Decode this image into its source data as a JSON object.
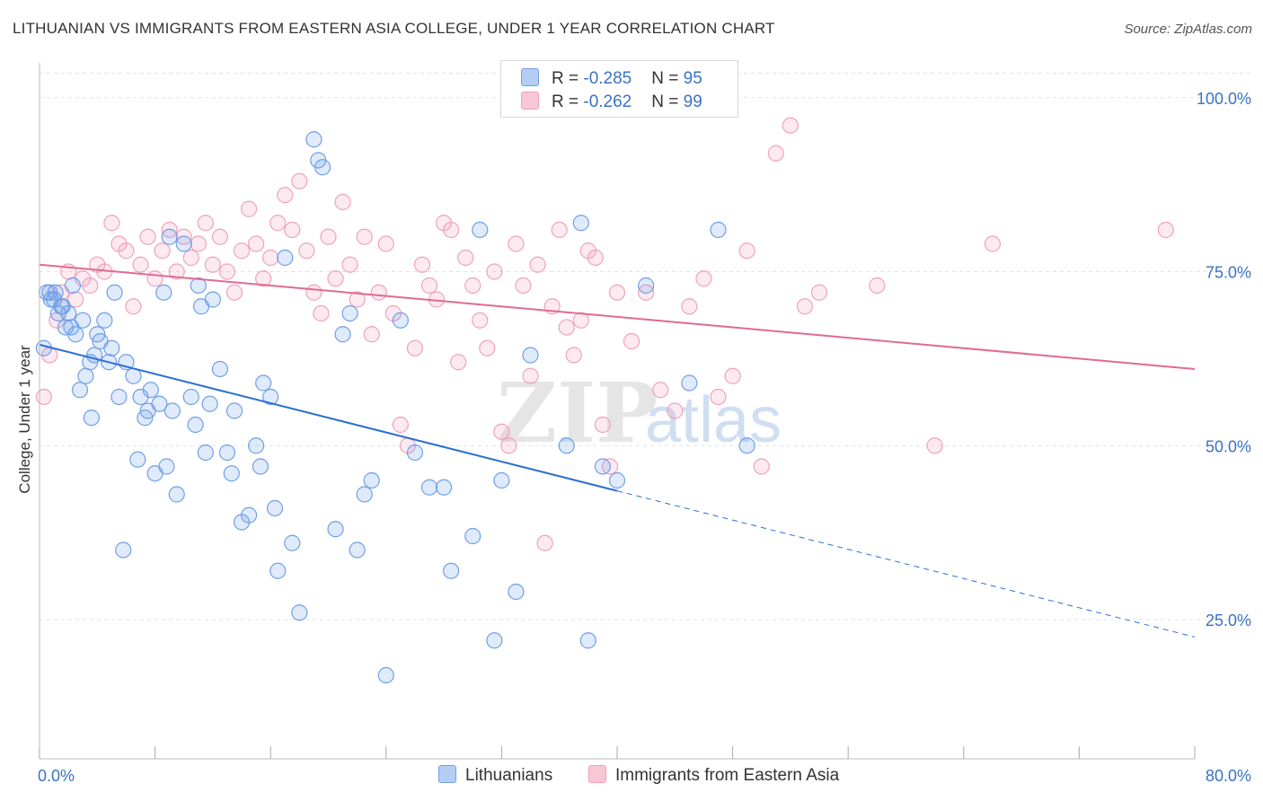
{
  "title": "LITHUANIAN VS IMMIGRANTS FROM EASTERN ASIA COLLEGE, UNDER 1 YEAR CORRELATION CHART",
  "source": "Source: ZipAtlas.com",
  "watermark": {
    "zip": "ZIP",
    "atlas": "atlas"
  },
  "legend": {
    "rows": [
      {
        "r_label": "R = ",
        "r_value": "-0.285",
        "n_label": "N = ",
        "n_value": "95"
      },
      {
        "r_label": "R = ",
        "r_value": "-0.262",
        "n_label": "N = ",
        "n_value": "99"
      }
    ]
  },
  "bottom_legend": {
    "a": "Lithuanians",
    "b": "Immigrants from Eastern Asia"
  },
  "chart_data": {
    "type": "scatter",
    "title": "LITHUANIAN VS IMMIGRANTS FROM EASTERN ASIA COLLEGE, UNDER 1 YEAR CORRELATION CHART",
    "xlabel": "",
    "ylabel": "College, Under 1 year",
    "xlim": [
      0,
      80
    ],
    "ylim": [
      5,
      105
    ],
    "x_tick_labels": [
      "0.0%",
      "80.0%"
    ],
    "y_ticks": [
      25,
      50,
      75,
      100
    ],
    "y_tick_labels": [
      "25.0%",
      "50.0%",
      "75.0%",
      "100.0%"
    ],
    "grid": true,
    "colors": {
      "blue": "#6f9ee8",
      "blue_line": "#2b6fd1",
      "pink": "#f0a0bc",
      "pink_line": "#e06a93",
      "tick_text": "#3a72c4"
    },
    "series": [
      {
        "name": "Lithuanians",
        "color": "#6f9ee8",
        "trend": {
          "x0": 0,
          "y0": 64.5,
          "x1": 40,
          "y1": 43.5,
          "dash_to_x": 80,
          "dash_to_y": 22.5
        },
        "points": [
          [
            0.3,
            64
          ],
          [
            0.5,
            72
          ],
          [
            0.7,
            72
          ],
          [
            0.8,
            71
          ],
          [
            1.0,
            71
          ],
          [
            1.1,
            72
          ],
          [
            1.3,
            69
          ],
          [
            1.5,
            70
          ],
          [
            1.6,
            70
          ],
          [
            2.0,
            69
          ],
          [
            2.2,
            67
          ],
          [
            2.5,
            66
          ],
          [
            2.8,
            58
          ],
          [
            3.0,
            68
          ],
          [
            3.2,
            60
          ],
          [
            3.5,
            62
          ],
          [
            3.8,
            63
          ],
          [
            4.0,
            66
          ],
          [
            4.2,
            65
          ],
          [
            4.5,
            68
          ],
          [
            5.0,
            64
          ],
          [
            5.2,
            72
          ],
          [
            5.5,
            57
          ],
          [
            6.0,
            62
          ],
          [
            6.5,
            60
          ],
          [
            7.0,
            57
          ],
          [
            7.3,
            54
          ],
          [
            7.5,
            55
          ],
          [
            8.0,
            46
          ],
          [
            8.3,
            56
          ],
          [
            8.6,
            72
          ],
          [
            9.0,
            80
          ],
          [
            9.2,
            55
          ],
          [
            9.5,
            43
          ],
          [
            10.0,
            79
          ],
          [
            10.5,
            57
          ],
          [
            11.0,
            73
          ],
          [
            11.2,
            70
          ],
          [
            11.5,
            49
          ],
          [
            12.0,
            71
          ],
          [
            12.5,
            61
          ],
          [
            13.0,
            49
          ],
          [
            13.5,
            55
          ],
          [
            14.0,
            39
          ],
          [
            14.5,
            40
          ],
          [
            15.0,
            50
          ],
          [
            15.5,
            59
          ],
          [
            16.0,
            57
          ],
          [
            16.5,
            32
          ],
          [
            17.0,
            77
          ],
          [
            18.0,
            26
          ],
          [
            19.0,
            94
          ],
          [
            19.3,
            91
          ],
          [
            19.6,
            90
          ],
          [
            20.5,
            38
          ],
          [
            21.0,
            66
          ],
          [
            21.5,
            69
          ],
          [
            22.0,
            35
          ],
          [
            22.5,
            43
          ],
          [
            23.0,
            45
          ],
          [
            24.0,
            17
          ],
          [
            25.0,
            68
          ],
          [
            26.0,
            49
          ],
          [
            27.0,
            44
          ],
          [
            28.0,
            44
          ],
          [
            28.5,
            32
          ],
          [
            30.0,
            37
          ],
          [
            30.5,
            81
          ],
          [
            31.5,
            22
          ],
          [
            32.0,
            45
          ],
          [
            33.0,
            29
          ],
          [
            34.0,
            63
          ],
          [
            36.5,
            50
          ],
          [
            37.5,
            82
          ],
          [
            38.0,
            22
          ],
          [
            39.0,
            47
          ],
          [
            40.0,
            45
          ],
          [
            42.0,
            73
          ],
          [
            45.0,
            59
          ],
          [
            47.0,
            81
          ],
          [
            49.0,
            50
          ],
          [
            2.3,
            73
          ],
          [
            1.8,
            67
          ],
          [
            3.6,
            54
          ],
          [
            5.8,
            35
          ],
          [
            6.8,
            48
          ],
          [
            8.8,
            47
          ],
          [
            10.8,
            53
          ],
          [
            11.8,
            56
          ],
          [
            13.3,
            46
          ],
          [
            15.3,
            47
          ],
          [
            16.3,
            41
          ],
          [
            17.5,
            36
          ],
          [
            7.7,
            58
          ],
          [
            4.8,
            62
          ]
        ]
      },
      {
        "name": "Immigrants from Eastern Asia",
        "color": "#f0a0bc",
        "trend": {
          "x0": 0,
          "y0": 76,
          "x1": 80,
          "y1": 61
        },
        "points": [
          [
            0.3,
            57
          ],
          [
            0.7,
            63
          ],
          [
            1.2,
            68
          ],
          [
            1.5,
            72
          ],
          [
            2.0,
            75
          ],
          [
            2.5,
            71
          ],
          [
            3.0,
            74
          ],
          [
            3.5,
            73
          ],
          [
            4.0,
            76
          ],
          [
            4.5,
            75
          ],
          [
            5.0,
            82
          ],
          [
            5.5,
            79
          ],
          [
            6.0,
            78
          ],
          [
            6.5,
            70
          ],
          [
            7.0,
            76
          ],
          [
            7.5,
            80
          ],
          [
            8.0,
            74
          ],
          [
            8.5,
            78
          ],
          [
            9.0,
            81
          ],
          [
            9.5,
            75
          ],
          [
            10.0,
            80
          ],
          [
            10.5,
            77
          ],
          [
            11.0,
            79
          ],
          [
            11.5,
            82
          ],
          [
            12.0,
            76
          ],
          [
            12.5,
            80
          ],
          [
            13.0,
            75
          ],
          [
            13.5,
            72
          ],
          [
            14.0,
            78
          ],
          [
            14.5,
            84
          ],
          [
            15.0,
            79
          ],
          [
            15.5,
            74
          ],
          [
            16.0,
            77
          ],
          [
            16.5,
            82
          ],
          [
            17.0,
            86
          ],
          [
            17.5,
            81
          ],
          [
            18.0,
            88
          ],
          [
            18.5,
            78
          ],
          [
            19.0,
            72
          ],
          [
            19.5,
            69
          ],
          [
            20.0,
            80
          ],
          [
            20.5,
            74
          ],
          [
            21.0,
            85
          ],
          [
            21.5,
            76
          ],
          [
            22.0,
            71
          ],
          [
            22.5,
            80
          ],
          [
            23.0,
            66
          ],
          [
            23.5,
            72
          ],
          [
            24.0,
            79
          ],
          [
            24.5,
            69
          ],
          [
            25.0,
            53
          ],
          [
            25.5,
            50
          ],
          [
            26.0,
            64
          ],
          [
            26.5,
            76
          ],
          [
            27.0,
            73
          ],
          [
            27.5,
            71
          ],
          [
            28.0,
            82
          ],
          [
            28.5,
            81
          ],
          [
            29.0,
            62
          ],
          [
            29.5,
            77
          ],
          [
            30.0,
            73
          ],
          [
            30.5,
            68
          ],
          [
            31.0,
            64
          ],
          [
            31.5,
            75
          ],
          [
            32.0,
            52
          ],
          [
            32.5,
            50
          ],
          [
            33.0,
            79
          ],
          [
            33.5,
            73
          ],
          [
            34.0,
            60
          ],
          [
            34.5,
            76
          ],
          [
            35.0,
            36
          ],
          [
            35.5,
            70
          ],
          [
            36.0,
            81
          ],
          [
            36.5,
            67
          ],
          [
            37.0,
            63
          ],
          [
            37.5,
            68
          ],
          [
            38.0,
            78
          ],
          [
            38.5,
            77
          ],
          [
            39.0,
            53
          ],
          [
            39.5,
            47
          ],
          [
            40.0,
            72
          ],
          [
            41.0,
            65
          ],
          [
            42.0,
            72
          ],
          [
            43.0,
            58
          ],
          [
            44.0,
            55
          ],
          [
            45.0,
            70
          ],
          [
            46.0,
            74
          ],
          [
            47.0,
            57
          ],
          [
            48.0,
            60
          ],
          [
            49.0,
            78
          ],
          [
            50.0,
            47
          ],
          [
            51.0,
            92
          ],
          [
            52.0,
            96
          ],
          [
            53.0,
            70
          ],
          [
            54.0,
            72
          ],
          [
            58.0,
            73
          ],
          [
            62.0,
            50
          ],
          [
            66.0,
            79
          ],
          [
            78.0,
            81
          ]
        ]
      }
    ]
  }
}
